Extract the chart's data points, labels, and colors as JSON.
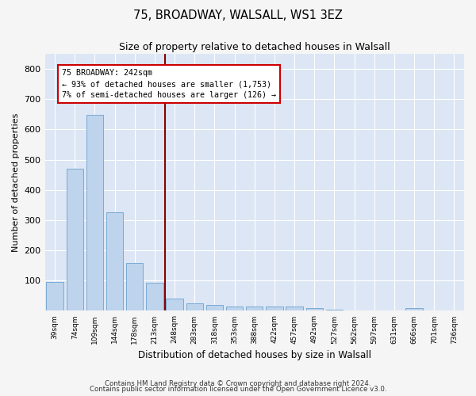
{
  "title1": "75, BROADWAY, WALSALL, WS1 3EZ",
  "title2": "Size of property relative to detached houses in Walsall",
  "xlabel": "Distribution of detached houses by size in Walsall",
  "ylabel": "Number of detached properties",
  "bar_color": "#bed3ec",
  "bar_edge_color": "#7aaad4",
  "background_color": "#dce6f5",
  "grid_color": "#ffffff",
  "bins": [
    "39sqm",
    "74sqm",
    "109sqm",
    "144sqm",
    "178sqm",
    "213sqm",
    "248sqm",
    "283sqm",
    "318sqm",
    "353sqm",
    "388sqm",
    "422sqm",
    "457sqm",
    "492sqm",
    "527sqm",
    "562sqm",
    "597sqm",
    "631sqm",
    "666sqm",
    "701sqm",
    "736sqm"
  ],
  "values": [
    95,
    470,
    648,
    325,
    158,
    92,
    40,
    25,
    20,
    15,
    15,
    13,
    13,
    9,
    3,
    2,
    1,
    1,
    8,
    1,
    1
  ],
  "annotation_text": "75 BROADWAY: 242sqm\n← 93% of detached houses are smaller (1,753)\n7% of semi-detached houses are larger (126) →",
  "annotation_box_color": "#ffffff",
  "annotation_box_edge": "#cc0000",
  "vline_color": "#880000",
  "ylim": [
    0,
    850
  ],
  "yticks": [
    0,
    100,
    200,
    300,
    400,
    500,
    600,
    700,
    800
  ],
  "footer1": "Contains HM Land Registry data © Crown copyright and database right 2024.",
  "footer2": "Contains public sector information licensed under the Open Government Licence v3.0."
}
